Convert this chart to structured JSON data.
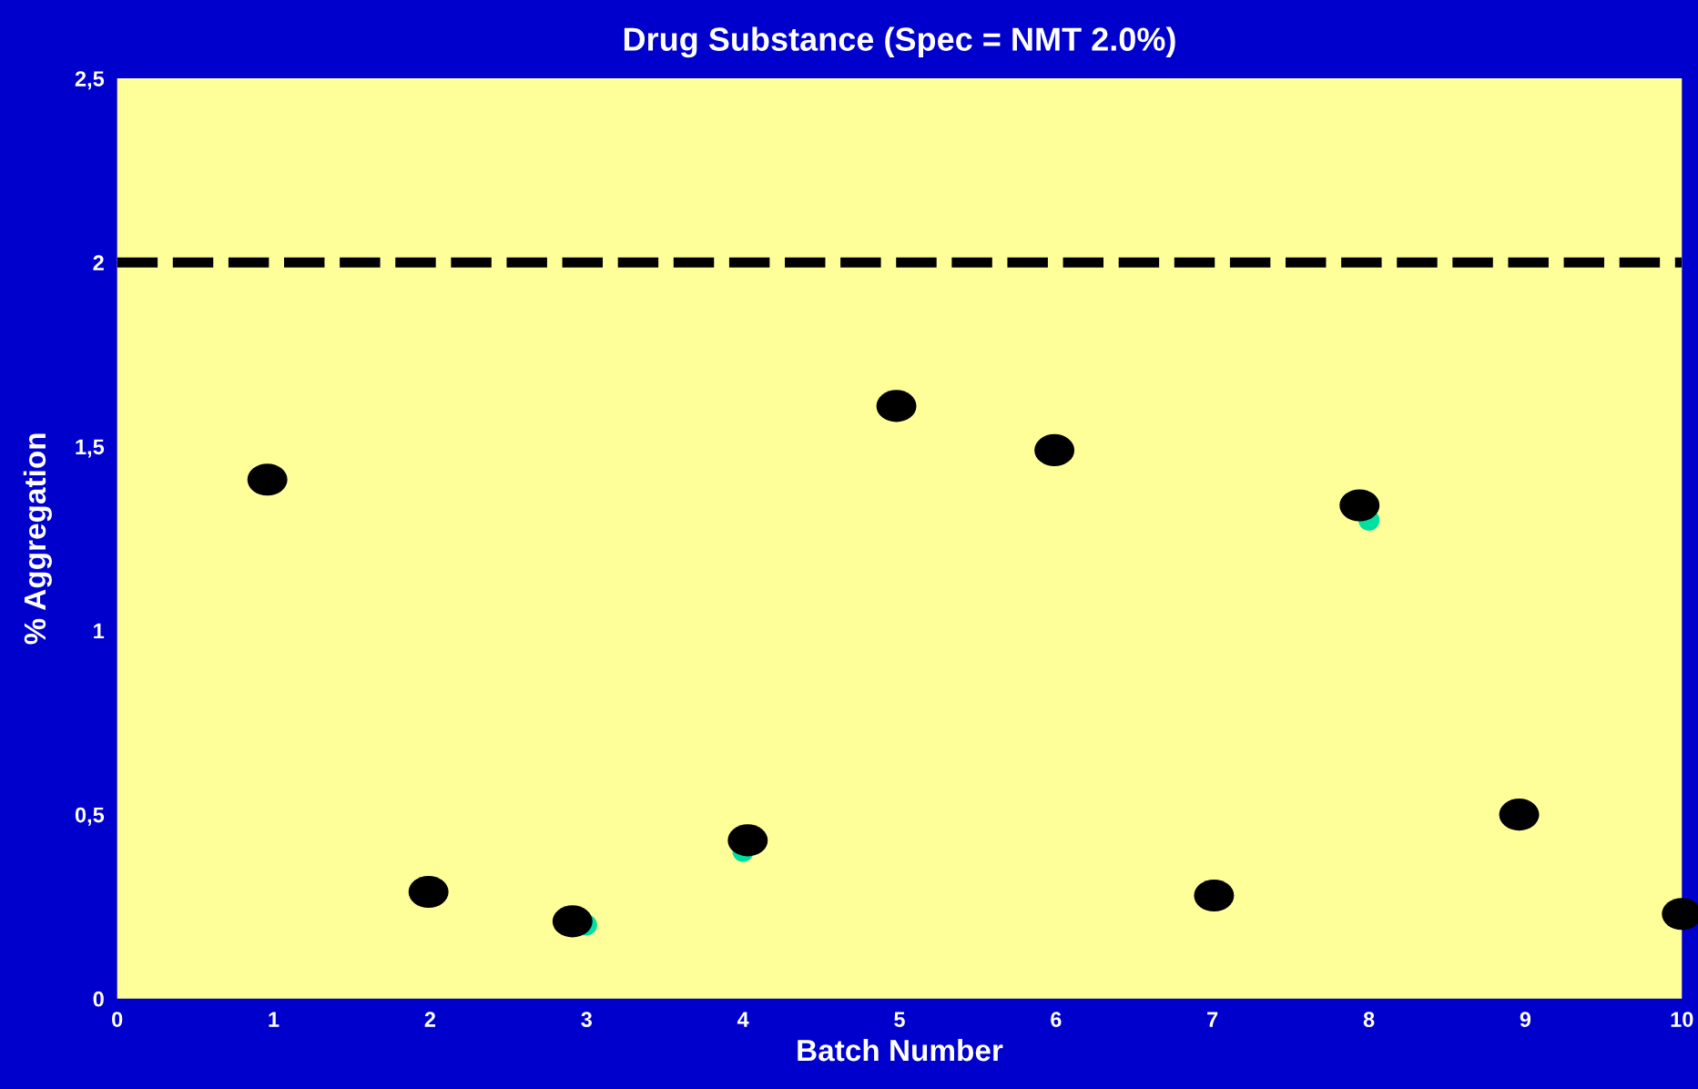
{
  "chart_data": {
    "type": "scatter",
    "title": "Drug Substance (Spec = NMT 2.0%)",
    "xlabel": "Batch Number",
    "ylabel": "% Aggregation",
    "series": [
      {
        "color": "#00e0a0",
        "x": [
          3,
          4,
          8
        ],
        "values": [
          0.2,
          0.4,
          1.3
        ]
      },
      {
        "color": "#000000",
        "x": [
          0.96,
          1.99,
          2.91,
          4.03,
          4.98,
          5.99,
          7.01,
          7.94,
          8.96,
          10.0
        ],
        "values": [
          1.41,
          0.29,
          0.21,
          0.43,
          1.61,
          1.49,
          0.28,
          1.34,
          0.5,
          0.23
        ]
      }
    ],
    "marker": "circle",
    "xlim": [
      0,
      10
    ],
    "xticks": [
      0,
      1,
      2,
      3,
      4,
      5,
      6,
      7,
      8,
      9,
      10
    ],
    "ylim": [
      0,
      2.5
    ],
    "yticks": [
      {
        "value": 0,
        "label": "0"
      },
      {
        "value": 0.5,
        "label": "0,5"
      },
      {
        "value": 1,
        "label": "1"
      },
      {
        "value": 1.5,
        "label": "1,5"
      },
      {
        "value": 2,
        "label": "2"
      },
      {
        "value": 2.5,
        "label": "2,5"
      }
    ],
    "ref_lines": [
      {
        "axis": "y",
        "value": 2,
        "color": "#000000",
        "line_style": "dashed"
      }
    ],
    "grid": false,
    "legend": false
  }
}
